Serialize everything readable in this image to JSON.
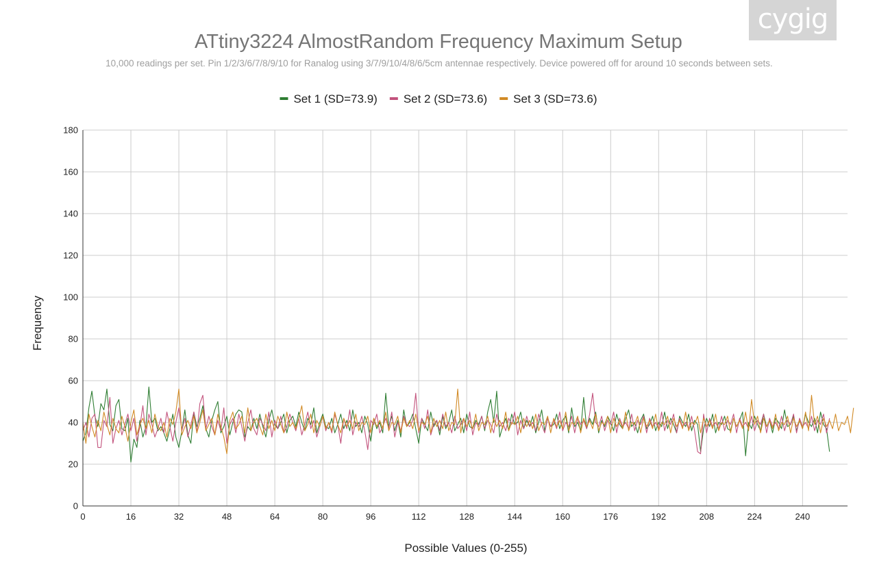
{
  "watermark": "cygig",
  "colors": {
    "background": "#ffffff",
    "grid": "#cccccc",
    "axis": "#333333",
    "title": "#757575",
    "subtitle": "#9e9e9e",
    "text": "#222222"
  },
  "chart_data": {
    "type": "line",
    "title": "ATtiny3224 AlmostRandom Frequency Maximum Setup",
    "subtitle": "10,000 readings per set. Pin 1/2/3/6/7/8/9/10 for Ranalog using 3/7/9/10/4/8/6/5cm antennae respectively. Device powered off for around 10 seconds between sets.",
    "xlabel": "Possible Values (0-255)",
    "ylabel": "Frequency",
    "xlim": [
      0,
      255
    ],
    "ylim": [
      0,
      180
    ],
    "x_ticks": [
      0,
      16,
      32,
      48,
      64,
      80,
      96,
      112,
      128,
      144,
      160,
      176,
      192,
      208,
      224,
      240
    ],
    "y_ticks": [
      0,
      20,
      40,
      60,
      80,
      100,
      120,
      140,
      160,
      180
    ],
    "grid": true,
    "legend_position": "top-center",
    "x": "0-255 (256 consecutive integer values)",
    "series": [
      {
        "name": "Set 1 (SD=73.9)",
        "color": "#2e7d32",
        "values": [
          31,
          35,
          47,
          55,
          43,
          38,
          49,
          46,
          56,
          39,
          36,
          48,
          51,
          37,
          36,
          42,
          21,
          32,
          28,
          41,
          33,
          38,
          57,
          40,
          42,
          36,
          38,
          35,
          31,
          37,
          44,
          33,
          28,
          36,
          46,
          34,
          30,
          45,
          38,
          42,
          48,
          37,
          33,
          41,
          46,
          50,
          35,
          38,
          43,
          34,
          40,
          44,
          46,
          45,
          33,
          38,
          36,
          42,
          37,
          44,
          38,
          33,
          41,
          46,
          39,
          37,
          40,
          44,
          35,
          41,
          43,
          38,
          45,
          40,
          36,
          42,
          39,
          47,
          35,
          40,
          44,
          38,
          37,
          42,
          35,
          39,
          44,
          37,
          41,
          36,
          46,
          38,
          40,
          35,
          43,
          39,
          31,
          42,
          37,
          40,
          35,
          54,
          38,
          43,
          36,
          41,
          33,
          46,
          38,
          40,
          44,
          37,
          30,
          42,
          39,
          36,
          45,
          38,
          41,
          34,
          43,
          37,
          40,
          46,
          36,
          39,
          42,
          35,
          44,
          38,
          37,
          41,
          39,
          43,
          36,
          45,
          51,
          40,
          55,
          33,
          38,
          42,
          36,
          44,
          39,
          40,
          45,
          37,
          41,
          38,
          43,
          35,
          40,
          46,
          36,
          42,
          38,
          39,
          44,
          37,
          41,
          43,
          35,
          47,
          38,
          40,
          36,
          52,
          37,
          42,
          39,
          45,
          35,
          41,
          38,
          43,
          40,
          36,
          44,
          39,
          37,
          42,
          46,
          38,
          40,
          35,
          41,
          44,
          37,
          39,
          43,
          36,
          40,
          38,
          45,
          37,
          42,
          39,
          35,
          43,
          40,
          38,
          44,
          36,
          41,
          39,
          26,
          37,
          42,
          38,
          44,
          35,
          40,
          39,
          43,
          37,
          36,
          42,
          38,
          41,
          45,
          24,
          40,
          37,
          43,
          39,
          36,
          44,
          38,
          41,
          35,
          42,
          40,
          37,
          46,
          38,
          39,
          43,
          36,
          41,
          37,
          44,
          40,
          38,
          42,
          35,
          45,
          39,
          37,
          26
        ]
      },
      {
        "name": "Set 2 (SD=73.6)",
        "color": "#c2527c",
        "values": [
          36,
          40,
          33,
          42,
          44,
          28,
          28,
          41,
          38,
          52,
          30,
          37,
          41,
          34,
          39,
          44,
          36,
          42,
          31,
          38,
          48,
          34,
          44,
          39,
          33,
          37,
          42,
          35,
          45,
          38,
          31,
          40,
          47,
          36,
          42,
          33,
          39,
          45,
          35,
          49,
          53,
          37,
          43,
          38,
          34,
          41,
          36,
          47,
          30,
          39,
          42,
          35,
          44,
          38,
          31,
          40,
          46,
          37,
          34,
          42,
          39,
          36,
          45,
          33,
          41,
          37,
          43,
          35,
          38,
          44,
          40,
          36,
          42,
          34,
          39,
          45,
          37,
          41,
          33,
          38,
          43,
          36,
          40,
          35,
          44,
          39,
          30,
          42,
          37,
          46,
          34,
          40,
          38,
          43,
          36,
          27,
          41,
          39,
          44,
          35,
          38,
          42,
          37,
          45,
          33,
          40,
          36,
          43,
          39,
          38,
          41,
          54,
          35,
          42,
          37,
          46,
          34,
          39,
          41,
          36,
          44,
          38,
          40,
          35,
          43,
          37,
          39,
          42,
          36,
          45,
          34,
          40,
          38,
          43,
          37,
          41,
          39,
          35,
          44,
          38,
          40,
          36,
          42,
          39,
          45,
          34,
          41,
          37,
          43,
          38,
          40,
          36,
          44,
          39,
          35,
          42,
          38,
          41,
          37,
          45,
          36,
          40,
          38,
          43,
          35,
          42,
          39,
          41,
          37,
          44,
          54,
          40,
          38,
          43,
          36,
          41,
          39,
          45,
          35,
          42,
          38,
          40,
          37,
          44,
          36,
          41,
          39,
          43,
          35,
          42,
          38,
          40,
          37,
          45,
          36,
          41,
          39,
          44,
          35,
          42,
          38,
          40,
          37,
          43,
          36,
          26,
          25,
          44,
          35,
          42,
          38,
          40,
          37,
          43,
          36,
          41,
          39,
          44,
          35,
          42,
          38,
          40,
          37,
          43,
          36,
          41,
          39,
          44,
          35,
          42,
          38,
          40,
          37,
          43,
          36,
          41,
          39,
          44,
          35,
          42,
          38,
          40,
          37,
          43,
          36,
          41,
          39,
          44,
          35,
          42
        ]
      },
      {
        "name": "Set 3 (SD=73.6)",
        "color": "#d18a25",
        "values": [
          40,
          30,
          44,
          38,
          33,
          41,
          36,
          45,
          39,
          34,
          42,
          37,
          35,
          43,
          38,
          31,
          40,
          46,
          34,
          39,
          42,
          37,
          41,
          35,
          44,
          38,
          36,
          40,
          33,
          42,
          39,
          45,
          56,
          34,
          38,
          41,
          37,
          43,
          35,
          40,
          46,
          36,
          39,
          42,
          34,
          44,
          38,
          33,
          25,
          41,
          45,
          37,
          39,
          43,
          35,
          47,
          36,
          40,
          42,
          38,
          34,
          44,
          37,
          41,
          36,
          43,
          39,
          35,
          45,
          38,
          40,
          37,
          42,
          48,
          36,
          39,
          44,
          35,
          41,
          38,
          43,
          37,
          40,
          36,
          45,
          39,
          35,
          42,
          38,
          41,
          37,
          44,
          36,
          40,
          39,
          43,
          35,
          42,
          38,
          41,
          37,
          45,
          36,
          40,
          39,
          43,
          35,
          42,
          38,
          41,
          37,
          44,
          36,
          40,
          39,
          43,
          35,
          42,
          38,
          41,
          37,
          45,
          36,
          40,
          39,
          56,
          35,
          42,
          38,
          41,
          37,
          44,
          36,
          40,
          39,
          43,
          35,
          42,
          38,
          41,
          37,
          45,
          36,
          40,
          39,
          43,
          35,
          42,
          38,
          41,
          37,
          44,
          36,
          40,
          39,
          43,
          35,
          42,
          38,
          41,
          37,
          45,
          36,
          40,
          39,
          43,
          35,
          42,
          38,
          41,
          37,
          44,
          36,
          40,
          39,
          43,
          35,
          42,
          38,
          41,
          37,
          45,
          36,
          40,
          39,
          43,
          35,
          42,
          38,
          41,
          37,
          44,
          36,
          40,
          39,
          43,
          35,
          42,
          38,
          41,
          37,
          45,
          36,
          40,
          39,
          43,
          35,
          42,
          38,
          41,
          37,
          44,
          36,
          40,
          39,
          43,
          35,
          42,
          38,
          41,
          37,
          45,
          36,
          51,
          39,
          43,
          35,
          42,
          38,
          41,
          37,
          44,
          36,
          40,
          39,
          43,
          35,
          42,
          38,
          41,
          37,
          45,
          36,
          53,
          39,
          43,
          35,
          42,
          38,
          41,
          37,
          44,
          36,
          40,
          39,
          43,
          35,
          47
        ]
      }
    ]
  }
}
